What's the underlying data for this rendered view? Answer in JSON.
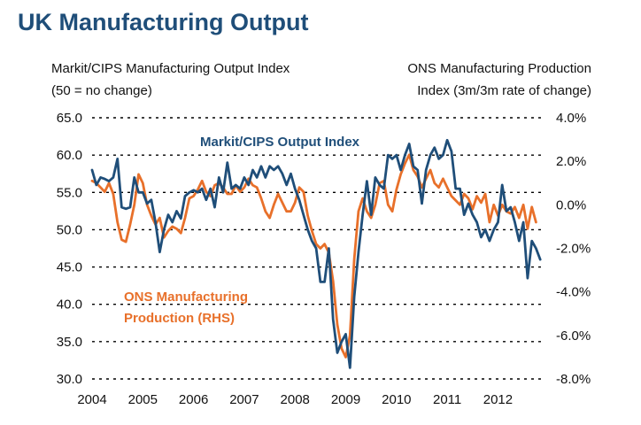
{
  "chart_data": {
    "type": "line",
    "title": "UK Manufacturing Output",
    "ylabel_left": [
      "Markit/CIPS Manufacturing Output Index",
      "(50 = no change)"
    ],
    "ylabel_right": [
      "ONS Manufacturing Production",
      "Index (3m/3m rate of change)"
    ],
    "x_range": [
      2004,
      2012.917
    ],
    "x_ticks": [
      "2004",
      "2005",
      "2006",
      "2007",
      "2008",
      "2009",
      "2010",
      "2011",
      "2012"
    ],
    "y_left": {
      "range": [
        30,
        65
      ],
      "ticks": [
        "30.0",
        "35.0",
        "40.0",
        "45.0",
        "50.0",
        "55.0",
        "60.0",
        "65.0"
      ]
    },
    "y_right": {
      "range": [
        -8,
        4
      ],
      "ticks": [
        "-8.0%",
        "-6.0%",
        "-4.0%",
        "-2.0%",
        "0.0%",
        "2.0%",
        "4.0%"
      ]
    },
    "grid": "horizontal-dotted",
    "colors": {
      "title": "#1f4e79",
      "markit": "#1f4e79",
      "ons": "#e8702a",
      "grid": "#000000"
    },
    "annotations": {
      "markit": "Markit/CIPS Output Index",
      "ons": [
        "ONS Manufacturing",
        "Production (RHS)"
      ]
    },
    "series": [
      {
        "name": "Markit/CIPS Output Index",
        "axis": "left",
        "x": [
          2004.0,
          2004.083,
          2004.167,
          2004.25,
          2004.333,
          2004.417,
          2004.5,
          2004.583,
          2004.667,
          2004.75,
          2004.833,
          2004.917,
          2005.0,
          2005.083,
          2005.167,
          2005.25,
          2005.333,
          2005.417,
          2005.5,
          2005.583,
          2005.667,
          2005.75,
          2005.833,
          2005.917,
          2006.0,
          2006.083,
          2006.167,
          2006.25,
          2006.333,
          2006.417,
          2006.5,
          2006.583,
          2006.667,
          2006.75,
          2006.833,
          2006.917,
          2007.0,
          2007.083,
          2007.167,
          2007.25,
          2007.333,
          2007.417,
          2007.5,
          2007.583,
          2007.667,
          2007.75,
          2007.833,
          2007.917,
          2008.0,
          2008.083,
          2008.167,
          2008.25,
          2008.333,
          2008.417,
          2008.5,
          2008.583,
          2008.667,
          2008.75,
          2008.833,
          2008.917,
          2009.0,
          2009.083,
          2009.167,
          2009.25,
          2009.333,
          2009.417,
          2009.5,
          2009.583,
          2009.667,
          2009.75,
          2009.833,
          2009.917,
          2010.0,
          2010.083,
          2010.167,
          2010.25,
          2010.333,
          2010.417,
          2010.5,
          2010.583,
          2010.667,
          2010.75,
          2010.833,
          2010.917,
          2011.0,
          2011.083,
          2011.167,
          2011.25,
          2011.333,
          2011.417,
          2011.5,
          2011.583,
          2011.667,
          2011.75,
          2011.833,
          2011.917,
          2012.0,
          2012.083,
          2012.167,
          2012.25,
          2012.333,
          2012.417,
          2012.5,
          2012.583,
          2012.667,
          2012.75,
          2012.833
        ],
        "values": [
          58.0,
          56.0,
          57.0,
          56.8,
          56.5,
          57.0,
          59.5,
          53.0,
          52.8,
          53.0,
          57.0,
          55.0,
          55.0,
          53.5,
          54.0,
          51.0,
          47.0,
          50.0,
          52.0,
          51.0,
          52.5,
          51.5,
          54.5,
          55.0,
          55.3,
          55.0,
          55.5,
          54.0,
          55.5,
          53.0,
          57.0,
          55.0,
          59.0,
          55.5,
          56.0,
          55.5,
          57.0,
          56.0,
          58.0,
          57.0,
          58.5,
          57.0,
          58.5,
          58.0,
          58.5,
          57.5,
          56.0,
          57.5,
          55.5,
          54.0,
          52.0,
          50.0,
          48.5,
          47.5,
          43.0,
          43.0,
          47.5,
          38.0,
          33.5,
          35.0,
          36.0,
          31.5,
          41.0,
          47.0,
          52.0,
          56.5,
          52.0,
          57.0,
          56.0,
          55.5,
          60.0,
          59.5,
          60.0,
          58.0,
          60.0,
          61.5,
          58.5,
          58.0,
          53.5,
          58.0,
          60.0,
          61.0,
          59.5,
          60.0,
          62.0,
          60.5,
          55.5,
          55.5,
          52.0,
          53.5,
          52.0,
          51.0,
          49.0,
          50.0,
          48.5,
          50.0,
          51.0,
          56.0,
          52.5,
          53.0,
          51.0,
          48.5,
          51.0,
          43.5,
          48.5,
          47.5,
          46.0
        ]
      },
      {
        "name": "ONS Manufacturing Production (RHS)",
        "axis": "right",
        "x": [
          2004.0,
          2004.083,
          2004.167,
          2004.25,
          2004.333,
          2004.417,
          2004.5,
          2004.583,
          2004.667,
          2004.75,
          2004.833,
          2004.917,
          2005.0,
          2005.083,
          2005.167,
          2005.25,
          2005.333,
          2005.417,
          2005.5,
          2005.583,
          2005.667,
          2005.75,
          2005.833,
          2005.917,
          2006.0,
          2006.083,
          2006.167,
          2006.25,
          2006.333,
          2006.417,
          2006.5,
          2006.583,
          2006.667,
          2006.75,
          2006.833,
          2006.917,
          2007.0,
          2007.083,
          2007.167,
          2007.25,
          2007.333,
          2007.417,
          2007.5,
          2007.583,
          2007.667,
          2007.75,
          2007.833,
          2007.917,
          2008.0,
          2008.083,
          2008.167,
          2008.25,
          2008.333,
          2008.417,
          2008.5,
          2008.583,
          2008.667,
          2008.75,
          2008.833,
          2008.917,
          2009.0,
          2009.083,
          2009.167,
          2009.25,
          2009.333,
          2009.417,
          2009.5,
          2009.583,
          2009.667,
          2009.75,
          2009.833,
          2009.917,
          2010.0,
          2010.083,
          2010.167,
          2010.25,
          2010.333,
          2010.417,
          2010.5,
          2010.583,
          2010.667,
          2010.75,
          2010.833,
          2010.917,
          2011.0,
          2011.083,
          2011.167,
          2011.25,
          2011.333,
          2011.417,
          2011.5,
          2011.583,
          2011.667,
          2011.75,
          2011.833,
          2011.917,
          2012.0,
          2012.083,
          2012.167,
          2012.25,
          2012.333,
          2012.417,
          2012.5,
          2012.583,
          2012.667,
          2012.75
        ],
        "values": [
          1.1,
          1.0,
          0.8,
          0.6,
          1.0,
          0.5,
          -0.8,
          -1.6,
          -1.7,
          -0.9,
          0.0,
          1.4,
          1.0,
          0.0,
          -0.5,
          -0.9,
          -0.6,
          -1.5,
          -1.2,
          -1.0,
          -1.1,
          -1.3,
          -0.6,
          0.3,
          0.4,
          0.7,
          1.1,
          0.6,
          0.4,
          0.9,
          1.0,
          0.8,
          0.5,
          0.5,
          0.9,
          0.6,
          0.8,
          1.2,
          0.9,
          0.8,
          0.3,
          -0.3,
          -0.6,
          0.0,
          0.5,
          0.1,
          -0.3,
          -0.3,
          0.1,
          0.8,
          0.6,
          -0.5,
          -1.2,
          -1.8,
          -2.0,
          -1.8,
          -2.2,
          -3.5,
          -5.5,
          -6.6,
          -7.0,
          -6.0,
          -2.5,
          -0.3,
          0.3,
          -0.3,
          -0.6,
          0.0,
          1.0,
          1.1,
          0.0,
          -0.3,
          0.7,
          1.4,
          1.9,
          2.3,
          1.6,
          1.3,
          0.8,
          1.2,
          1.6,
          1.0,
          0.8,
          1.2,
          0.8,
          0.4,
          0.2,
          0.0,
          0.5,
          0.3,
          -0.2,
          0.4,
          0.1,
          0.5,
          -0.8,
          0.0,
          -0.5,
          0.0,
          -0.3,
          -0.4,
          -0.1,
          -0.6,
          0.0,
          -1.1,
          -0.1,
          -0.8
        ]
      }
    ]
  }
}
